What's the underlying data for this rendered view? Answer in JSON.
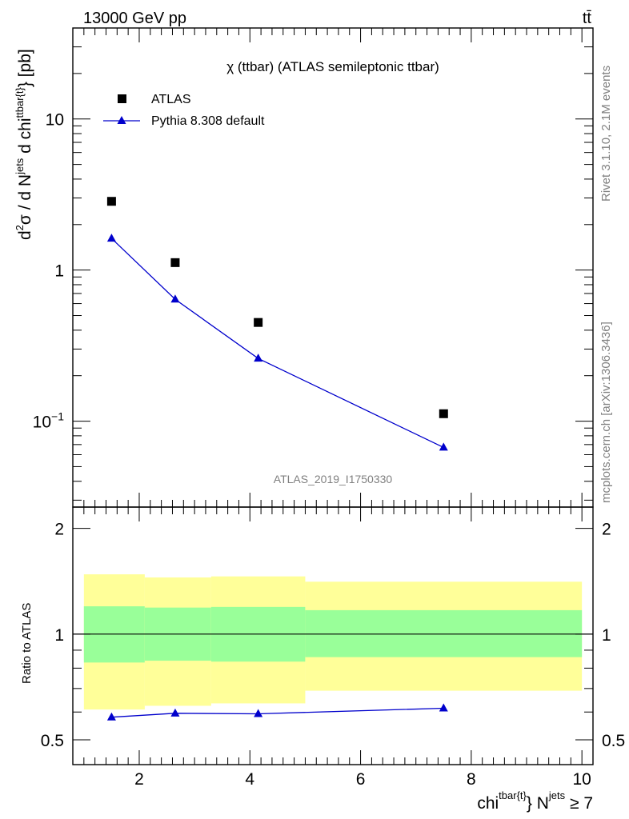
{
  "header": {
    "energy_label": "13000 GeV pp",
    "process_label": "tt̄",
    "plot_title": "χ (ttbar) (ATLAS semileptonic ttbar)",
    "analysis_id": "ATLAS_2019_I1750330",
    "side_text_1": "Rivet 3.1.10,  2.1M events",
    "side_text_2": "mcplots.cern.ch [arXiv:1306.3436]"
  },
  "axes": {
    "main_ylabel": "d²σ / d N^{jets} d chi^{ttbar{t}} [pb]",
    "main_ylabel_parts": [
      "d",
      "2",
      "σ / d N",
      "jets",
      " d chi",
      "ttbar{t}",
      "} [pb]"
    ],
    "ratio_ylabel": "Ratio to ATLAS",
    "xlabel": "chi^{tbar{t}} N^{jets} ≥ 7",
    "xlabel_parts": [
      "chi",
      "tbar{t}",
      "} N",
      "jets",
      " ≥ 7"
    ],
    "main_tick_labels": [
      "10⁻¹",
      "1",
      "10"
    ],
    "main_tick_10m1": [
      "10",
      "−1"
    ],
    "ratio_tick_labels": [
      "0.5",
      "1",
      "2"
    ],
    "x_tick_labels": [
      "2",
      "4",
      "6",
      "8",
      "10"
    ]
  },
  "legend": {
    "data_label": "ATLAS",
    "mc_label": "Pythia 8.308 default"
  },
  "colors": {
    "data": "#000000",
    "mc": "#0000cc",
    "band_inner": "#99ff99",
    "band_outer": "#ffff99"
  },
  "chart_data": [
    {
      "type": "scatter",
      "panel": "main",
      "ylog": true,
      "xlim": [
        0.8,
        10.2
      ],
      "ylim": [
        0.027,
        40
      ],
      "series": [
        {
          "name": "ATLAS",
          "x": [
            1.5,
            2.65,
            4.15,
            7.5
          ],
          "y": [
            2.85,
            1.12,
            0.45,
            0.112
          ]
        },
        {
          "name": "Pythia 8.308 default",
          "x": [
            1.5,
            2.65,
            4.15,
            7.5
          ],
          "y": [
            1.62,
            0.64,
            0.26,
            0.067
          ]
        }
      ]
    },
    {
      "type": "line",
      "panel": "ratio",
      "ylog": true,
      "xlim": [
        0.8,
        10.2
      ],
      "ylim": [
        0.425,
        2.3
      ],
      "bins": [
        [
          1.0,
          2.1
        ],
        [
          2.1,
          3.3
        ],
        [
          3.3,
          5.0
        ],
        [
          5.0,
          10.0
        ]
      ],
      "band_inner": [
        [
          0.83,
          1.2
        ],
        [
          0.84,
          1.19
        ],
        [
          0.835,
          1.195
        ],
        [
          0.86,
          1.17
        ]
      ],
      "band_outer": [
        [
          0.61,
          1.48
        ],
        [
          0.625,
          1.45
        ],
        [
          0.635,
          1.46
        ],
        [
          0.69,
          1.41
        ]
      ],
      "series": [
        {
          "name": "Pythia 8.308 default",
          "x": [
            1.5,
            2.65,
            4.15,
            7.5
          ],
          "y": [
            0.58,
            0.595,
            0.593,
            0.615
          ]
        }
      ]
    }
  ]
}
